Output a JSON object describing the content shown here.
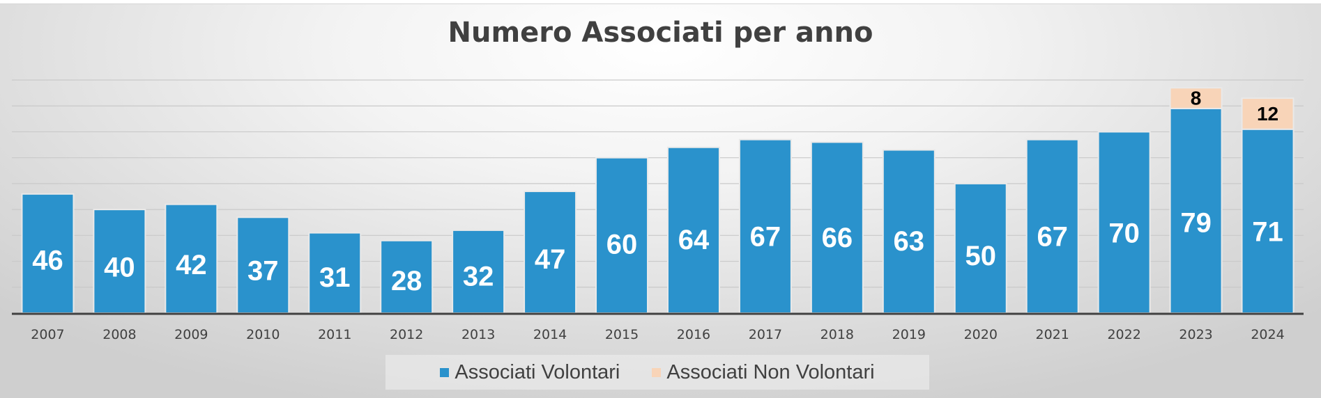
{
  "chart_data": {
    "type": "bar",
    "stacked": true,
    "title": "Numero Associati per anno",
    "categories": [
      "2007",
      "2008",
      "2009",
      "2010",
      "2011",
      "2012",
      "2013",
      "2014",
      "2015",
      "2016",
      "2017",
      "2018",
      "2019",
      "2020",
      "2021",
      "2022",
      "2023",
      "2024"
    ],
    "series": [
      {
        "name": "Associati Volontari",
        "color": "#2a92cc",
        "values": [
          46,
          40,
          42,
          37,
          31,
          28,
          32,
          47,
          60,
          64,
          67,
          66,
          63,
          50,
          67,
          70,
          79,
          71
        ],
        "labels": [
          "46",
          "40",
          "42",
          "37",
          "31",
          "28",
          "32",
          "47",
          "60",
          "64",
          "67",
          "66",
          "63",
          "50",
          "67",
          "70",
          "79",
          "71"
        ]
      },
      {
        "name": "Associati Non Volontari",
        "color": "#f8d4b8",
        "values": [
          0,
          0,
          0,
          0,
          0,
          0,
          0,
          0,
          0,
          0,
          0,
          0,
          0,
          0,
          0,
          0,
          8,
          12
        ],
        "labels": [
          "",
          "",
          "",
          "",
          "",
          "",
          "",
          "",
          "",
          "",
          "",
          "",
          "",
          "",
          "",
          "",
          "8",
          "12"
        ]
      }
    ],
    "ylim": [
      0,
      90
    ],
    "grid": true,
    "legend_position": "bottom"
  }
}
